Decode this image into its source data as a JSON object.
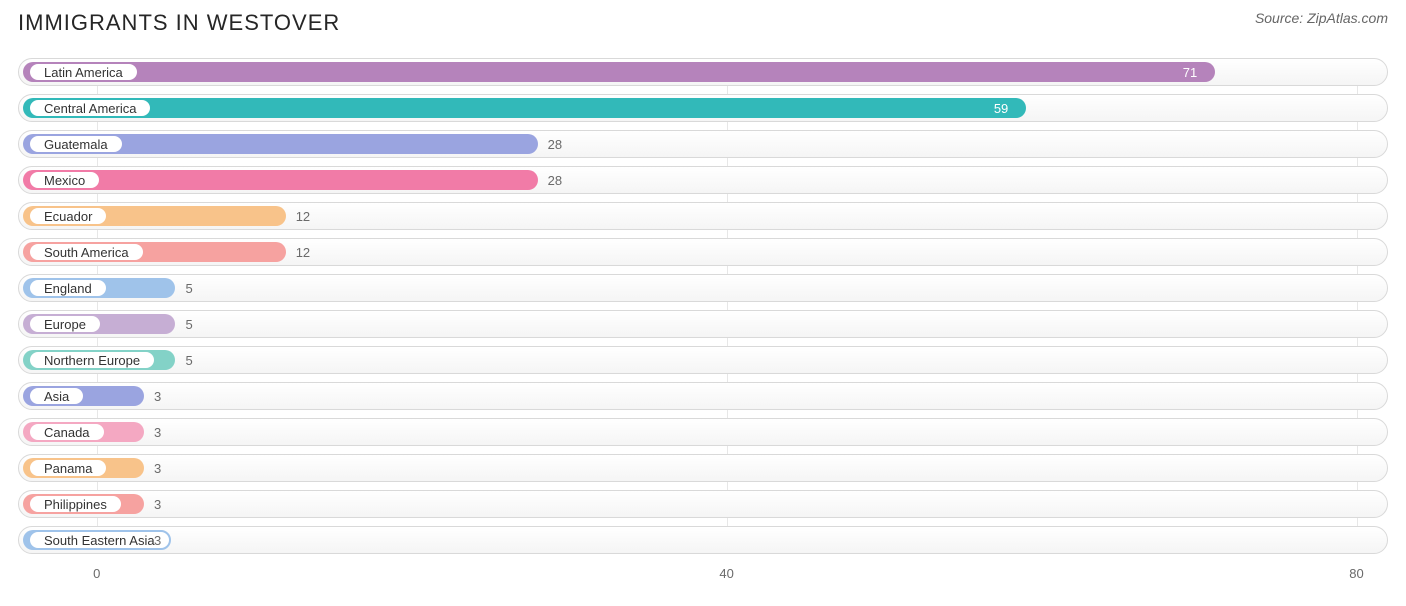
{
  "chart": {
    "type": "bar-horizontal",
    "title": "IMMIGRANTS IN WESTOVER",
    "source": "Source: ZipAtlas.com",
    "background_color": "#ffffff",
    "track_border_color": "#d9d9d9",
    "value_text_color": "#6a6a6a",
    "title_color": "#262626",
    "title_fontsize": 22,
    "label_fontsize": 13,
    "value_fontsize": 13,
    "x_axis": {
      "min": -5,
      "max": 82,
      "ticks": [
        0,
        40,
        80
      ]
    },
    "bars": [
      {
        "label": "Latin America",
        "value": 71,
        "fill": "#b583bb",
        "border": "#b583bb"
      },
      {
        "label": "Central America",
        "value": 59,
        "fill": "#32b9b9",
        "border": "#32b9b9"
      },
      {
        "label": "Guatemala",
        "value": 28,
        "fill": "#9aa4e0",
        "border": "#9aa4e0"
      },
      {
        "label": "Mexico",
        "value": 28,
        "fill": "#f17ba7",
        "border": "#f17ba7"
      },
      {
        "label": "Ecuador",
        "value": 12,
        "fill": "#f8c38a",
        "border": "#f8c38a"
      },
      {
        "label": "South America",
        "value": 12,
        "fill": "#f6a2a0",
        "border": "#f6a2a0"
      },
      {
        "label": "England",
        "value": 5,
        "fill": "#9fc3ea",
        "border": "#9fc3ea"
      },
      {
        "label": "Europe",
        "value": 5,
        "fill": "#c6aed4",
        "border": "#c6aed4"
      },
      {
        "label": "Northern Europe",
        "value": 5,
        "fill": "#83d2c7",
        "border": "#83d2c7"
      },
      {
        "label": "Asia",
        "value": 3,
        "fill": "#9aa4e0",
        "border": "#9aa4e0"
      },
      {
        "label": "Canada",
        "value": 3,
        "fill": "#f4a8c2",
        "border": "#f4a8c2"
      },
      {
        "label": "Panama",
        "value": 3,
        "fill": "#f8c38a",
        "border": "#f8c38a"
      },
      {
        "label": "Philippines",
        "value": 3,
        "fill": "#f6a2a0",
        "border": "#f6a2a0"
      },
      {
        "label": "South Eastern Asia",
        "value": 3,
        "fill": "#9fc3ea",
        "border": "#9fc3ea"
      }
    ]
  }
}
